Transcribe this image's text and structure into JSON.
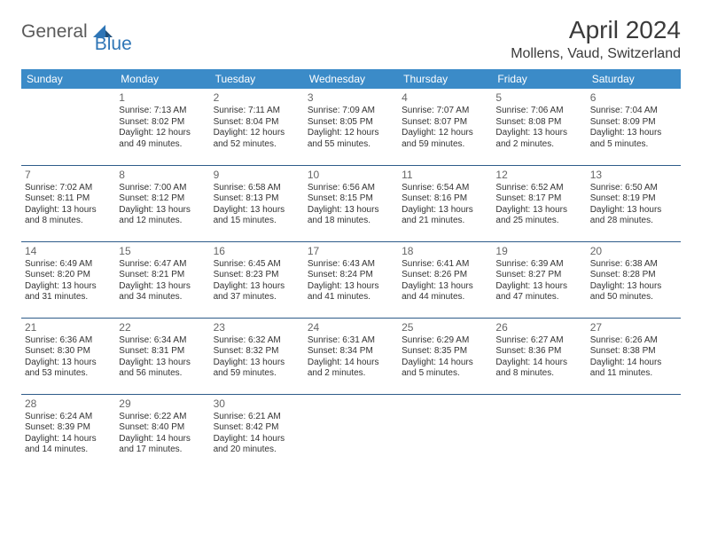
{
  "header": {
    "logo_part1": "General",
    "logo_part2": "Blue",
    "month_title": "April 2024",
    "location": "Mollens, Vaud, Switzerland"
  },
  "colors": {
    "header_bg": "#3b8bc8",
    "header_text": "#ffffff",
    "row_border": "#2e5c8a",
    "logo_gray": "#5a5a5a",
    "logo_blue": "#2e75b6",
    "text": "#333333",
    "daynum": "#666666"
  },
  "weekdays": [
    "Sunday",
    "Monday",
    "Tuesday",
    "Wednesday",
    "Thursday",
    "Friday",
    "Saturday"
  ],
  "weeks": [
    [
      null,
      {
        "n": "1",
        "sr": "7:13 AM",
        "ss": "8:02 PM",
        "d1": "12 hours",
        "d2": "and 49 minutes."
      },
      {
        "n": "2",
        "sr": "7:11 AM",
        "ss": "8:04 PM",
        "d1": "12 hours",
        "d2": "and 52 minutes."
      },
      {
        "n": "3",
        "sr": "7:09 AM",
        "ss": "8:05 PM",
        "d1": "12 hours",
        "d2": "and 55 minutes."
      },
      {
        "n": "4",
        "sr": "7:07 AM",
        "ss": "8:07 PM",
        "d1": "12 hours",
        "d2": "and 59 minutes."
      },
      {
        "n": "5",
        "sr": "7:06 AM",
        "ss": "8:08 PM",
        "d1": "13 hours",
        "d2": "and 2 minutes."
      },
      {
        "n": "6",
        "sr": "7:04 AM",
        "ss": "8:09 PM",
        "d1": "13 hours",
        "d2": "and 5 minutes."
      }
    ],
    [
      {
        "n": "7",
        "sr": "7:02 AM",
        "ss": "8:11 PM",
        "d1": "13 hours",
        "d2": "and 8 minutes."
      },
      {
        "n": "8",
        "sr": "7:00 AM",
        "ss": "8:12 PM",
        "d1": "13 hours",
        "d2": "and 12 minutes."
      },
      {
        "n": "9",
        "sr": "6:58 AM",
        "ss": "8:13 PM",
        "d1": "13 hours",
        "d2": "and 15 minutes."
      },
      {
        "n": "10",
        "sr": "6:56 AM",
        "ss": "8:15 PM",
        "d1": "13 hours",
        "d2": "and 18 minutes."
      },
      {
        "n": "11",
        "sr": "6:54 AM",
        "ss": "8:16 PM",
        "d1": "13 hours",
        "d2": "and 21 minutes."
      },
      {
        "n": "12",
        "sr": "6:52 AM",
        "ss": "8:17 PM",
        "d1": "13 hours",
        "d2": "and 25 minutes."
      },
      {
        "n": "13",
        "sr": "6:50 AM",
        "ss": "8:19 PM",
        "d1": "13 hours",
        "d2": "and 28 minutes."
      }
    ],
    [
      {
        "n": "14",
        "sr": "6:49 AM",
        "ss": "8:20 PM",
        "d1": "13 hours",
        "d2": "and 31 minutes."
      },
      {
        "n": "15",
        "sr": "6:47 AM",
        "ss": "8:21 PM",
        "d1": "13 hours",
        "d2": "and 34 minutes."
      },
      {
        "n": "16",
        "sr": "6:45 AM",
        "ss": "8:23 PM",
        "d1": "13 hours",
        "d2": "and 37 minutes."
      },
      {
        "n": "17",
        "sr": "6:43 AM",
        "ss": "8:24 PM",
        "d1": "13 hours",
        "d2": "and 41 minutes."
      },
      {
        "n": "18",
        "sr": "6:41 AM",
        "ss": "8:26 PM",
        "d1": "13 hours",
        "d2": "and 44 minutes."
      },
      {
        "n": "19",
        "sr": "6:39 AM",
        "ss": "8:27 PM",
        "d1": "13 hours",
        "d2": "and 47 minutes."
      },
      {
        "n": "20",
        "sr": "6:38 AM",
        "ss": "8:28 PM",
        "d1": "13 hours",
        "d2": "and 50 minutes."
      }
    ],
    [
      {
        "n": "21",
        "sr": "6:36 AM",
        "ss": "8:30 PM",
        "d1": "13 hours",
        "d2": "and 53 minutes."
      },
      {
        "n": "22",
        "sr": "6:34 AM",
        "ss": "8:31 PM",
        "d1": "13 hours",
        "d2": "and 56 minutes."
      },
      {
        "n": "23",
        "sr": "6:32 AM",
        "ss": "8:32 PM",
        "d1": "13 hours",
        "d2": "and 59 minutes."
      },
      {
        "n": "24",
        "sr": "6:31 AM",
        "ss": "8:34 PM",
        "d1": "14 hours",
        "d2": "and 2 minutes."
      },
      {
        "n": "25",
        "sr": "6:29 AM",
        "ss": "8:35 PM",
        "d1": "14 hours",
        "d2": "and 5 minutes."
      },
      {
        "n": "26",
        "sr": "6:27 AM",
        "ss": "8:36 PM",
        "d1": "14 hours",
        "d2": "and 8 minutes."
      },
      {
        "n": "27",
        "sr": "6:26 AM",
        "ss": "8:38 PM",
        "d1": "14 hours",
        "d2": "and 11 minutes."
      }
    ],
    [
      {
        "n": "28",
        "sr": "6:24 AM",
        "ss": "8:39 PM",
        "d1": "14 hours",
        "d2": "and 14 minutes."
      },
      {
        "n": "29",
        "sr": "6:22 AM",
        "ss": "8:40 PM",
        "d1": "14 hours",
        "d2": "and 17 minutes."
      },
      {
        "n": "30",
        "sr": "6:21 AM",
        "ss": "8:42 PM",
        "d1": "14 hours",
        "d2": "and 20 minutes."
      },
      null,
      null,
      null,
      null
    ]
  ],
  "labels": {
    "sunrise_prefix": "Sunrise: ",
    "sunset_prefix": "Sunset: ",
    "daylight_prefix": "Daylight: "
  }
}
